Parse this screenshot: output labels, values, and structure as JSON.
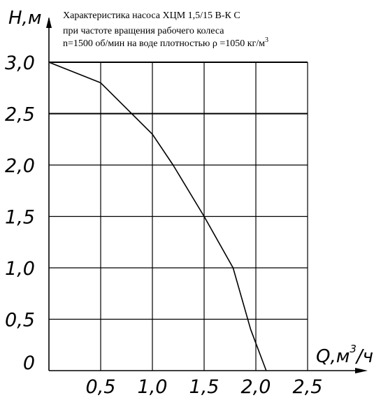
{
  "chart_data": {
    "type": "line",
    "title": [
      "Характеристика насоса ХЦМ 1,5/15 В-К С",
      "при частоте вращения рабочего  колеса",
      "n=1500 об/мин на  воде плотностью ρ =1050 кг/м"
    ],
    "title_superscript": "3",
    "ylabel": "Н,м",
    "xlabel": "Q,м",
    "xlabel_superscript": "3",
    "xlabel_suffix": "/ч",
    "xlim": [
      0,
      2.5
    ],
    "ylim": [
      0,
      3.0
    ],
    "xticks": [
      {
        "value": 0.5,
        "label": "0,5"
      },
      {
        "value": 1.0,
        "label": "1,0"
      },
      {
        "value": 1.5,
        "label": "1,5"
      },
      {
        "value": 2.0,
        "label": "2,0"
      },
      {
        "value": 2.5,
        "label": "2,5"
      }
    ],
    "yticks": [
      {
        "value": 0,
        "label": "0"
      },
      {
        "value": 0.5,
        "label": "0,5"
      },
      {
        "value": 1.0,
        "label": "1,0"
      },
      {
        "value": 1.5,
        "label": "1,5"
      },
      {
        "value": 2.0,
        "label": "2,0"
      },
      {
        "value": 2.5,
        "label": "2,5"
      },
      {
        "value": 3.0,
        "label": "3,0"
      }
    ],
    "grid": true,
    "series": [
      {
        "x": [
          0,
          0.5,
          1.0,
          1.2,
          1.5,
          1.78,
          1.95,
          2.1
        ],
        "y": [
          3.0,
          2.8,
          2.3,
          2.0,
          1.5,
          1.0,
          0.4,
          0
        ]
      }
    ]
  }
}
